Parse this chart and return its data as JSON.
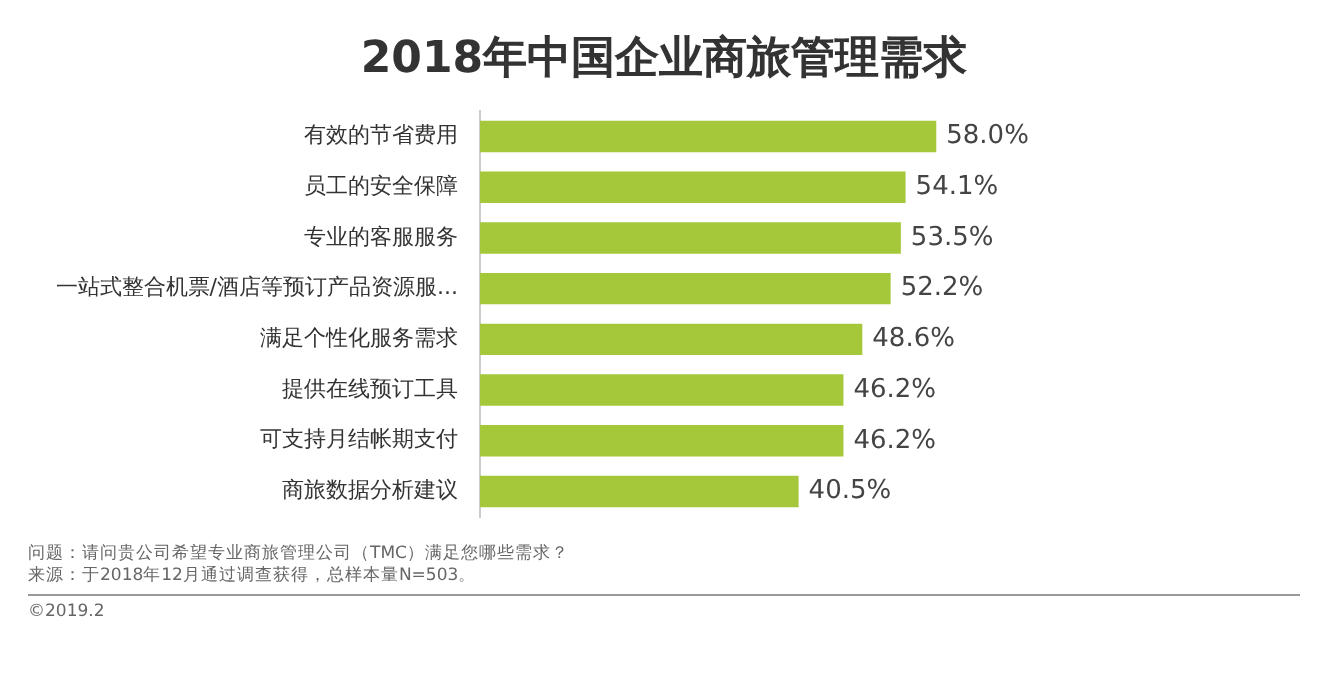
{
  "chart_data": {
    "type": "bar",
    "orientation": "horizontal",
    "title": "2018年中国企业商旅管理需求",
    "categories": [
      "有效的节省费用",
      "员工的安全保障",
      "专业的客服服务",
      "一站式整合机票/酒店等预订产品资源服...",
      "满足个性化服务需求",
      "提供在线预订工具",
      "可支持月结帐期支付",
      "商旅数据分析建议"
    ],
    "values": [
      58.0,
      54.1,
      53.5,
      52.2,
      48.6,
      46.2,
      46.2,
      40.5
    ],
    "value_labels": [
      "58.0%",
      "54.1%",
      "53.5%",
      "52.2%",
      "48.6%",
      "46.2%",
      "46.2%",
      "40.5%"
    ],
    "color": "#a5c83a",
    "grid": false,
    "legend": false,
    "tick_labels": "y",
    "annotations": [
      "问题：请问贵公司希望专业商旅管理公司（TMC）满足您哪些需求？",
      "来源：于2018年12月通过调查获得，总样本量N=503。",
      "©2019.2"
    ]
  }
}
